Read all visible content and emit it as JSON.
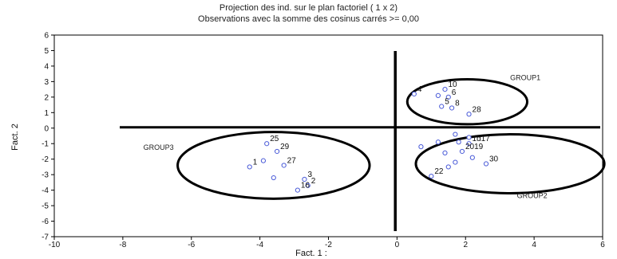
{
  "chart_data": {
    "type": "scatter",
    "title": "Projection des ind. sur le plan factoriel ( 1 x 2)",
    "subtitle": "Observations avec la somme des cosinus carrés >= 0,00",
    "xlabel": "Fact. 1 :",
    "ylabel": "Fact. 2",
    "xlim": [
      -10,
      6
    ],
    "ylim": [
      -7,
      6
    ],
    "xticks": [
      -10,
      -8,
      -6,
      -4,
      -2,
      0,
      2,
      4,
      6
    ],
    "yticks": [
      6,
      5,
      4,
      3,
      2,
      1,
      0,
      -1,
      -2,
      -3,
      -4,
      -5,
      -6,
      -7
    ],
    "grid": false,
    "point_color": "#4a5bd8",
    "points": [
      {
        "label": "10",
        "x": 1.4,
        "y": 2.5
      },
      {
        "label": "4",
        "x": 0.5,
        "y": 2.2
      },
      {
        "label": "",
        "x": 1.2,
        "y": 2.1
      },
      {
        "label": "6",
        "x": 1.5,
        "y": 2.0
      },
      {
        "label": "5",
        "x": 1.3,
        "y": 1.4
      },
      {
        "label": "8",
        "x": 1.6,
        "y": 1.3
      },
      {
        "label": "28",
        "x": 2.1,
        "y": 0.9
      },
      {
        "label": "",
        "x": 1.7,
        "y": -0.4
      },
      {
        "label": "",
        "x": 2.1,
        "y": -0.6
      },
      {
        "label": "",
        "x": 1.2,
        "y": -0.9
      },
      {
        "label": "",
        "x": 1.8,
        "y": -0.9
      },
      {
        "label": "1d17",
        "x": 2.1,
        "y": -1.0
      },
      {
        "label": "",
        "x": 0.7,
        "y": -1.2
      },
      {
        "label": "2019",
        "x": 1.9,
        "y": -1.5
      },
      {
        "label": "",
        "x": 1.4,
        "y": -1.6
      },
      {
        "label": "",
        "x": 2.2,
        "y": -1.9
      },
      {
        "label": "",
        "x": 1.7,
        "y": -2.2
      },
      {
        "label": "30",
        "x": 2.6,
        "y": -2.3
      },
      {
        "label": "",
        "x": 1.5,
        "y": -2.5
      },
      {
        "label": "22",
        "x": 1.0,
        "y": -3.1
      },
      {
        "label": "25",
        "x": -3.8,
        "y": -1.0
      },
      {
        "label": "29",
        "x": -3.5,
        "y": -1.5
      },
      {
        "label": "",
        "x": -3.9,
        "y": -2.1
      },
      {
        "label": "1",
        "x": -4.3,
        "y": -2.5
      },
      {
        "label": "27",
        "x": -3.3,
        "y": -2.4
      },
      {
        "label": "",
        "x": -3.6,
        "y": -3.2
      },
      {
        "label": "3",
        "x": -2.7,
        "y": -3.3
      },
      {
        "label": "2",
        "x": -2.6,
        "y": -3.7
      },
      {
        "label": "16",
        "x": -2.9,
        "y": -4.0
      }
    ],
    "annotations": [
      {
        "text": "GROUP1",
        "x": 3.3,
        "y": 3.1
      },
      {
        "text": "GROUP2",
        "x": 3.5,
        "y": -4.5
      },
      {
        "text": "GROUP3",
        "x": -7.4,
        "y": -1.4
      }
    ],
    "groups": [
      {
        "name": "GROUP1",
        "cx": 2.05,
        "cy": 1.7,
        "rx": 1.75,
        "ry": 1.45
      },
      {
        "name": "GROUP2",
        "cx": 3.3,
        "cy": -2.3,
        "rx": 2.75,
        "ry": 1.9
      },
      {
        "name": "GROUP3",
        "cx": -3.6,
        "cy": -2.4,
        "rx": 2.8,
        "ry": 2.15
      }
    ],
    "reference_lines": {
      "x": -0.05,
      "y": 0.05
    }
  }
}
